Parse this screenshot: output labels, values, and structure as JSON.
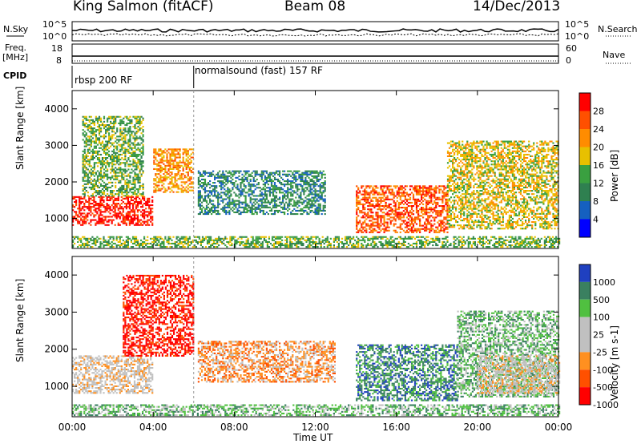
{
  "header": {
    "station": "King Salmon (fitACF)",
    "beam": "Beam 08",
    "date": "14/Dec/2013"
  },
  "top_panels": {
    "nsky_label": "N.Sky",
    "nsearch_label": "N.Search",
    "noise_ticks": [
      "10^5",
      "10^0"
    ],
    "freq_label_line1": "Freq.",
    "freq_label_line2": "[MHz]",
    "freq_ticks": [
      "18",
      "8"
    ],
    "nave_label": "Nave",
    "nave_ticks": [
      "60",
      "0"
    ],
    "cpid_label": "CPID",
    "cpid_segments": [
      {
        "label": "rbsp 200 RF",
        "start_hour": 0
      },
      {
        "label": "normalsound (fast) 157 RF",
        "start_hour": 6
      }
    ]
  },
  "colors": {
    "power_scale": [
      "#0000ff",
      "#1560c0",
      "#2f8050",
      "#3aa040",
      "#e8c000",
      "#ff8c00",
      "#ff5000",
      "#ff0000"
    ],
    "velocity_scale": [
      "#ff0000",
      "#ff5000",
      "#ff9020",
      "#c0c0c0",
      "#c0c0c0",
      "#50c040",
      "#3a8060",
      "#1f40c0"
    ]
  },
  "chart_data": [
    {
      "type": "heatmap",
      "title": "Power",
      "xlabel": "",
      "ylabel": "Slant Range [km]",
      "xlim": [
        0,
        24
      ],
      "ylim": [
        180,
        4500
      ],
      "x_ticks": [
        "00:00",
        "04:00",
        "08:00",
        "12:00",
        "16:00",
        "20:00",
        "00:00"
      ],
      "y_ticks": [
        1000,
        2000,
        3000,
        4000
      ],
      "colorbar_label": "Power [dB]",
      "colorbar_ticks": [
        "4",
        "8",
        "12",
        "16",
        "20",
        "24",
        "28"
      ],
      "regions": [
        {
          "t": [
            0.0,
            4.0
          ],
          "r": [
            800,
            1600
          ],
          "level": 7
        },
        {
          "t": [
            0.5,
            3.5
          ],
          "r": [
            1600,
            3800
          ],
          "level": 3
        },
        {
          "t": [
            4.0,
            6.0
          ],
          "r": [
            1700,
            2900
          ],
          "level": 5
        },
        {
          "t": [
            6.2,
            12.5
          ],
          "r": [
            1100,
            2300
          ],
          "level": 2
        },
        {
          "t": [
            14.0,
            18.5
          ],
          "r": [
            600,
            1900
          ],
          "level": 6
        },
        {
          "t": [
            18.5,
            24.0
          ],
          "r": [
            700,
            3100
          ],
          "level": 4
        },
        {
          "t": [
            0.0,
            24.0
          ],
          "r": [
            200,
            500
          ],
          "level": 3
        }
      ]
    },
    {
      "type": "heatmap",
      "title": "Velocity",
      "xlabel": "Time UT",
      "ylabel": "Slant Range [km]",
      "xlim": [
        0,
        24
      ],
      "ylim": [
        180,
        4500
      ],
      "x_ticks": [
        "00:00",
        "04:00",
        "08:00",
        "12:00",
        "16:00",
        "20:00",
        "00:00"
      ],
      "y_ticks": [
        1000,
        2000,
        3000,
        4000
      ],
      "colorbar_label": "Velocity [m s-1]",
      "colorbar_ticks": [
        "1000",
        "500",
        "100",
        "25",
        "-25",
        "-100",
        "-500",
        "-1000"
      ],
      "regions": [
        {
          "t": [
            0.0,
            4.0
          ],
          "r": [
            800,
            1800
          ],
          "level": 3
        },
        {
          "t": [
            2.5,
            6.0
          ],
          "r": [
            1800,
            4000
          ],
          "level": 0
        },
        {
          "t": [
            6.2,
            13.0
          ],
          "r": [
            1100,
            2200
          ],
          "level": 2
        },
        {
          "t": [
            14.0,
            19.0
          ],
          "r": [
            600,
            2100
          ],
          "level": 6
        },
        {
          "t": [
            19.0,
            24.0
          ],
          "r": [
            700,
            3000
          ],
          "level": 5
        },
        {
          "t": [
            20.0,
            24.0
          ],
          "r": [
            800,
            1800
          ],
          "level": 3
        },
        {
          "t": [
            0.0,
            24.0
          ],
          "r": [
            200,
            500
          ],
          "level": 5
        }
      ]
    }
  ]
}
